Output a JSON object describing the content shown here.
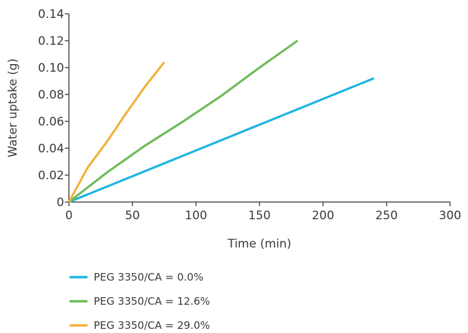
{
  "chart_data": {
    "type": "line",
    "title": "",
    "xlabel": "Time (min)",
    "ylabel": "Water uptake (g)",
    "xlim": [
      0,
      300
    ],
    "ylim": [
      0,
      0.14
    ],
    "x_ticks": [
      0,
      50,
      100,
      150,
      200,
      250,
      300
    ],
    "x_tick_labels": [
      "0",
      "50",
      "100",
      "150",
      "200",
      "250",
      "300"
    ],
    "y_ticks": [
      0,
      0.02,
      0.04,
      0.06,
      0.08,
      0.1,
      0.12,
      0.14
    ],
    "y_tick_labels": [
      "0",
      "0.02",
      "0.04",
      "0.06",
      "0.08",
      "0.10",
      "0.12",
      "0.14"
    ],
    "grid": false,
    "legend_position": "bottom-left",
    "series": [
      {
        "name": "PEG 3350/CA = 0.0%",
        "color": "#1ab4e0",
        "x": [
          0,
          240
        ],
        "y": [
          0,
          0.092
        ]
      },
      {
        "name": "PEG 3350/CA = 12.6%",
        "color": "#6dbb57",
        "x": [
          0,
          30,
          60,
          90,
          120,
          150,
          180
        ],
        "y": [
          0,
          0.022,
          0.042,
          0.06,
          0.079,
          0.1,
          0.12
        ]
      },
      {
        "name": "PEG 3350/CA = 29.0%",
        "color": "#f3b13a",
        "x": [
          0,
          15,
          30,
          45,
          60,
          75
        ],
        "y": [
          0,
          0.026,
          0.045,
          0.066,
          0.086,
          0.104
        ]
      }
    ]
  }
}
